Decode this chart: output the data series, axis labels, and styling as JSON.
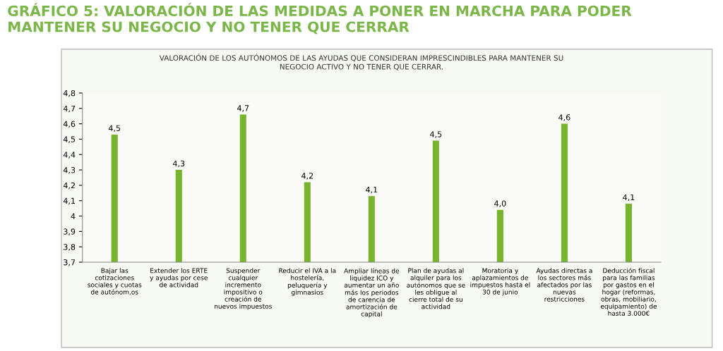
{
  "chart_data": {
    "type": "bar",
    "title": "GRÁFICO 5: VALORACIÓN DE LAS MEDIDAS A PONER EN MARCHA PARA PODER MANTENER SU NEGOCIO Y NO TENER QUE CERRAR",
    "subtitle": "VALORACIÓN DE LOS AUTÓNOMOS DE LAS AYUDAS QUE CONSIDERAN IMPRESCINDIBLES PARA MANTENER SU\nNEGOCIO ACTIVO Y NO TENER QUE CERRAR.",
    "categories": [
      "Bajar las\ncotizaciones\nsociales y cuotas\nde autónom,os",
      "Extender los ERTE\ny ayudas por cese\nde actividad",
      "Suspender\ncualquier\nincremento\nimpositivo o\ncreación de\nnuevos impuestos",
      "Reducir el IVA a la\nhostelería,\npeluquería y\ngimnasios",
      "Ampliar líneas de\nliquidez ICO y\naumentar un año\nmás los periodos\nde carencia de\namortización de\ncapital",
      "Plan de ayudas al\nalquiler para los\nautónomos que se\nles obligue al\ncierre total de su\nactividad",
      "Moratoria y\naplazamientos de\nimpuestos hasta el\n30 de junio",
      "Ayudas directas a\nlos sectores más\nafectados por las\nnuevas\nrestricciones",
      "Deducción fiscal\npara las familias\npor gastos en el\nhogar (reformas,\nobras, mobiliario,\nequipamiento) de\nhasta 3.000€"
    ],
    "values": [
      4.53,
      4.3,
      4.66,
      4.22,
      4.13,
      4.49,
      4.04,
      4.6,
      4.08
    ],
    "value_labels": [
      "4,5",
      "4,3",
      "4,7",
      "4,2",
      "4,1",
      "4,5",
      "4,0",
      "4,6",
      "4,1"
    ],
    "color": "#77b52f",
    "ylim": [
      3.7,
      4.8
    ],
    "yticks": [
      {
        "value": 3.7,
        "label": "3,7"
      },
      {
        "value": 3.8,
        "label": "3,8"
      },
      {
        "value": 3.9,
        "label": "3,9"
      },
      4,
      {
        "value": 4.1,
        "label": "4,1"
      },
      {
        "value": 4.2,
        "label": "4,2"
      },
      {
        "value": 4.3,
        "label": "4,3"
      },
      {
        "value": 4.4,
        "label": "4,4"
      },
      {
        "value": 4.5,
        "label": "4,5"
      },
      {
        "value": 4.6,
        "label": "4,6"
      },
      {
        "value": 4.7,
        "label": "4,7"
      },
      {
        "value": 4.8,
        "label": "4,8"
      }
    ],
    "grid": false,
    "legend": false
  }
}
